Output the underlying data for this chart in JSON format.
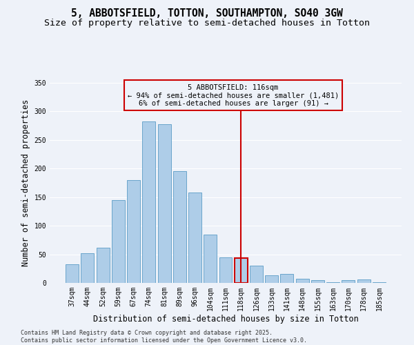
{
  "title_line1": "5, ABBOTSFIELD, TOTTON, SOUTHAMPTON, SO40 3GW",
  "title_line2": "Size of property relative to semi-detached houses in Totton",
  "xlabel": "Distribution of semi-detached houses by size in Totton",
  "ylabel": "Number of semi-detached properties",
  "categories": [
    "37sqm",
    "44sqm",
    "52sqm",
    "59sqm",
    "67sqm",
    "74sqm",
    "81sqm",
    "89sqm",
    "96sqm",
    "104sqm",
    "111sqm",
    "118sqm",
    "126sqm",
    "133sqm",
    "141sqm",
    "148sqm",
    "155sqm",
    "163sqm",
    "170sqm",
    "178sqm",
    "185sqm"
  ],
  "values": [
    33,
    52,
    61,
    145,
    180,
    283,
    277,
    195,
    158,
    85,
    45,
    44,
    30,
    13,
    16,
    7,
    5,
    1,
    5,
    6,
    1
  ],
  "bar_color": "#aecde8",
  "bar_edge_color": "#5a9cc5",
  "highlight_index": 11,
  "highlight_color": "#cc0000",
  "vline_color": "#cc0000",
  "annotation_title": "5 ABBOTSFIELD: 116sqm",
  "annotation_line2": "← 94% of semi-detached houses are smaller (1,481)",
  "annotation_line3": "6% of semi-detached houses are larger (91) →",
  "annotation_box_color": "#cc0000",
  "ylim": [
    0,
    350
  ],
  "yticks": [
    0,
    50,
    100,
    150,
    200,
    250,
    300,
    350
  ],
  "background_color": "#eef2f9",
  "footer_line1": "Contains HM Land Registry data © Crown copyright and database right 2025.",
  "footer_line2": "Contains public sector information licensed under the Open Government Licence v3.0.",
  "title_fontsize": 10.5,
  "subtitle_fontsize": 9.5,
  "axis_label_fontsize": 8.5,
  "tick_fontsize": 7,
  "annotation_fontsize": 7.5,
  "footer_fontsize": 6
}
